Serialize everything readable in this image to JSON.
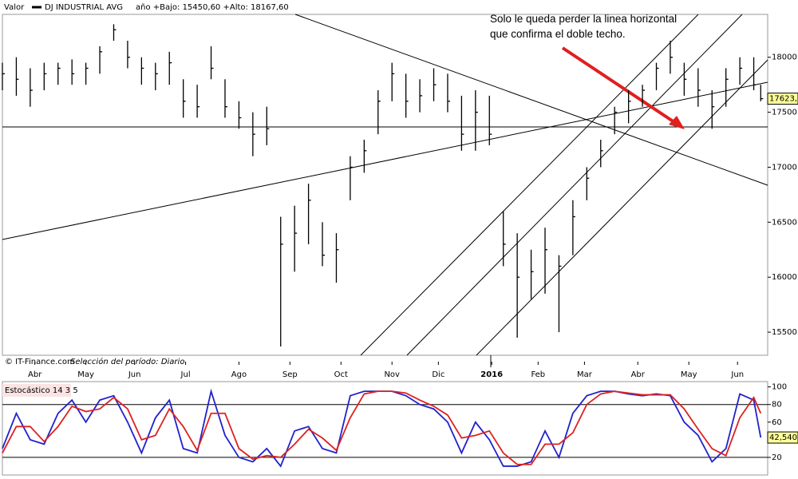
{
  "chart_data": [
    {
      "type": "ohlc",
      "label": "Valor",
      "title": "DJ INDUSTRIAL AVG",
      "subtitle": "año +Bajo: 15450,60 +Alto: 18167,60",
      "source": "© IT-Finance.com",
      "period": "Selección del período: Diario",
      "annotation": "Solo le queda perder la linea horizontal que confirma el doble techo.",
      "color": "#000000",
      "x": [
        0,
        6,
        12,
        18,
        24,
        30,
        36,
        42,
        48,
        54,
        60,
        66,
        72,
        78,
        84,
        90,
        96,
        102,
        108,
        114,
        120,
        126,
        132,
        138,
        144,
        150,
        156,
        162,
        168,
        174,
        180,
        186,
        192,
        198,
        204,
        210,
        216,
        222,
        228,
        234,
        240,
        246,
        252,
        258,
        264,
        270,
        276,
        282,
        288,
        294,
        300,
        306,
        312,
        318,
        324,
        327
      ],
      "high": [
        17950,
        18000,
        17900,
        17950,
        17950,
        17980,
        17950,
        18100,
        18300,
        18150,
        18000,
        17950,
        18050,
        17800,
        17750,
        18100,
        17800,
        17600,
        17500,
        17550,
        16550,
        16650,
        16850,
        16500,
        16400,
        17100,
        17250,
        17700,
        17950,
        17850,
        17800,
        17900,
        17850,
        17650,
        17700,
        17650,
        16600,
        16400,
        16250,
        16450,
        16200,
        16700,
        17000,
        17250,
        17550,
        17700,
        17750,
        17950,
        18150,
        17950,
        17900,
        17700,
        17900,
        18000,
        18000,
        17750
      ],
      "low": [
        17700,
        17650,
        17550,
        17700,
        17750,
        17750,
        17750,
        17850,
        18150,
        17900,
        17750,
        17700,
        17750,
        17450,
        17450,
        17800,
        17450,
        17350,
        17100,
        17200,
        15370,
        16050,
        16300,
        16100,
        15950,
        16700,
        16950,
        17300,
        17600,
        17450,
        17500,
        17600,
        17500,
        17150,
        17150,
        17200,
        16100,
        15450,
        15800,
        15850,
        15500,
        16200,
        16700,
        17000,
        17300,
        17400,
        17550,
        17700,
        17850,
        17650,
        17550,
        17350,
        17550,
        17750,
        17700,
        17600
      ],
      "close": [
        17850,
        17800,
        17700,
        17850,
        17900,
        17850,
        17900,
        18050,
        18250,
        18000,
        17900,
        17850,
        17950,
        17600,
        17550,
        17900,
        17550,
        17450,
        17300,
        17350,
        16300,
        16400,
        16700,
        16200,
        16250,
        17000,
        17150,
        17600,
        17850,
        17600,
        17650,
        17750,
        17600,
        17300,
        17500,
        17300,
        16300,
        16000,
        16050,
        16250,
        16100,
        16550,
        16900,
        17150,
        17500,
        17600,
        17700,
        17900,
        18000,
        17800,
        17700,
        17550,
        17800,
        17900,
        17750,
        17623.3
      ],
      "last_value": {
        "value": 17623.3,
        "label": "17623,3"
      },
      "xlim": [
        0,
        330
      ],
      "xticks": [
        {
          "value": 14,
          "label": "Abr"
        },
        {
          "value": 36,
          "label": "May"
        },
        {
          "value": 57,
          "label": "Jun"
        },
        {
          "value": 79,
          "label": "Jul"
        },
        {
          "value": 102,
          "label": "Ago"
        },
        {
          "value": 124,
          "label": "Sep"
        },
        {
          "value": 146,
          "label": "Oct"
        },
        {
          "value": 168,
          "label": "Nov"
        },
        {
          "value": 188,
          "label": "Dic"
        },
        {
          "value": 211,
          "label": "2016"
        },
        {
          "value": 231,
          "label": "Feb"
        },
        {
          "value": 251,
          "label": "Mar"
        },
        {
          "value": 274,
          "label": "Abr"
        },
        {
          "value": 296,
          "label": "May"
        },
        {
          "value": 317,
          "label": "Jun"
        }
      ],
      "ylim": [
        15290,
        18390
      ],
      "yticks": [
        15500,
        16000,
        16500,
        17000,
        17500,
        18000
      ]
    },
    {
      "type": "line",
      "title": "Estocástico 14 3 5",
      "x": [
        0,
        6,
        12,
        18,
        24,
        30,
        36,
        42,
        48,
        54,
        60,
        66,
        72,
        78,
        84,
        90,
        96,
        102,
        108,
        114,
        120,
        126,
        132,
        138,
        144,
        150,
        156,
        162,
        168,
        174,
        180,
        186,
        192,
        198,
        204,
        210,
        216,
        222,
        228,
        234,
        240,
        246,
        252,
        258,
        264,
        270,
        276,
        282,
        288,
        294,
        300,
        306,
        312,
        318,
        324,
        327
      ],
      "series": [
        {
          "color": "#2222cc",
          "values": [
            30,
            70,
            40,
            35,
            70,
            85,
            60,
            85,
            90,
            60,
            25,
            65,
            85,
            30,
            25,
            95,
            45,
            20,
            15,
            30,
            10,
            50,
            55,
            30,
            25,
            90,
            95,
            95,
            95,
            90,
            80,
            75,
            60,
            25,
            60,
            40,
            10,
            10,
            15,
            50,
            20,
            70,
            90,
            95,
            95,
            92,
            90,
            92,
            90,
            60,
            45,
            15,
            30,
            92,
            85,
            42.54
          ]
        },
        {
          "color": "#dd2222",
          "values": [
            25,
            55,
            55,
            38,
            55,
            78,
            72,
            75,
            88,
            75,
            40,
            45,
            75,
            55,
            28,
            70,
            70,
            30,
            18,
            22,
            20,
            35,
            52,
            42,
            28,
            65,
            92,
            95,
            95,
            93,
            85,
            78,
            68,
            42,
            45,
            50,
            25,
            12,
            12,
            35,
            35,
            48,
            80,
            92,
            95,
            93,
            91,
            91,
            91,
            75,
            52,
            30,
            22,
            65,
            88,
            70
          ]
        }
      ],
      "last_value": {
        "value": 42.54,
        "label": "42,540"
      },
      "reference_lines": [
        20,
        80
      ],
      "xlim": [
        0,
        330
      ],
      "ylim": [
        0,
        106
      ],
      "yticks": [
        20,
        40,
        60,
        80,
        100
      ]
    }
  ]
}
